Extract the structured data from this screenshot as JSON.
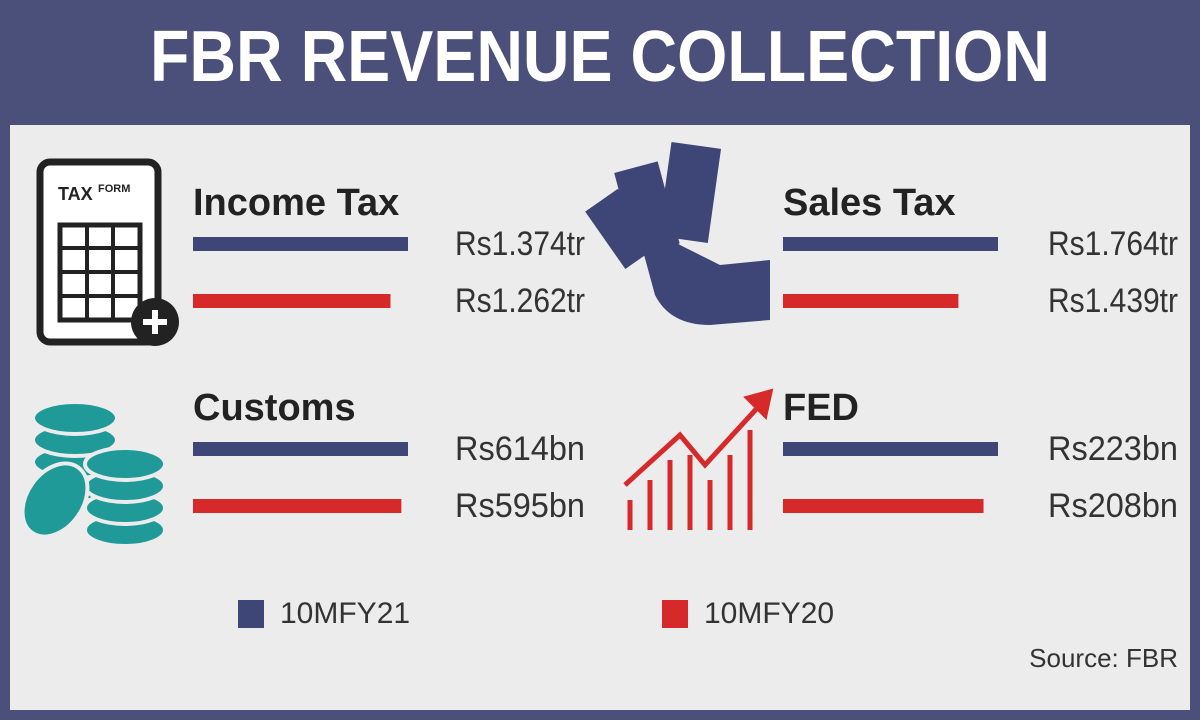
{
  "title": "FBR REVENUE COLLECTION",
  "panels": [
    {
      "title": "Income Tax",
      "icon_text": [
        "TAX",
        "FORM"
      ],
      "values": [
        1.374,
        1.262
      ],
      "value_labels": [
        "Rs1.374tr",
        "Rs1.262tr"
      ]
    },
    {
      "title": "Sales Tax",
      "values": [
        1.764,
        1.439
      ],
      "value_labels": [
        "Rs1.764tr",
        "Rs1.439tr"
      ]
    },
    {
      "title": "Customs",
      "values": [
        614,
        595
      ],
      "value_labels": [
        "Rs614bn",
        "Rs595bn"
      ]
    },
    {
      "title": "FED",
      "values": [
        223,
        208
      ],
      "value_labels": [
        "Rs223bn",
        "Rs208bn"
      ]
    }
  ],
  "legend": [
    {
      "name": "10MFY21",
      "color": "#3d4677"
    },
    {
      "name": "10MFY20",
      "color": "#d62a2a"
    }
  ],
  "source": "Source: FBR"
}
